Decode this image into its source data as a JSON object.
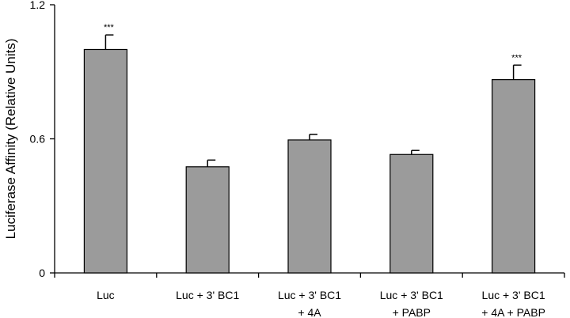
{
  "chart_data": {
    "type": "bar",
    "title": "",
    "xlabel": "",
    "ylabel": "Luciferase Affinity (Relative Units)",
    "ylim": [
      0,
      1.2
    ],
    "yticks": [
      "0",
      "0.6",
      "1.2"
    ],
    "categories": [
      [
        "Luc"
      ],
      [
        "Luc + 3' BC1"
      ],
      [
        "Luc + 3' BC1",
        "+ 4A"
      ],
      [
        "Luc + 3' BC1",
        "+ PABP"
      ],
      [
        "Luc + 3' BC1",
        "+ 4A + PABP"
      ]
    ],
    "values": [
      1.0,
      0.475,
      0.595,
      0.53,
      0.865
    ],
    "errors": [
      0.065,
      0.03,
      0.025,
      0.018,
      0.065
    ],
    "significance": [
      "***",
      "",
      "",
      "",
      "***"
    ],
    "bar_color": "#9b9b9b",
    "grid": false
  }
}
